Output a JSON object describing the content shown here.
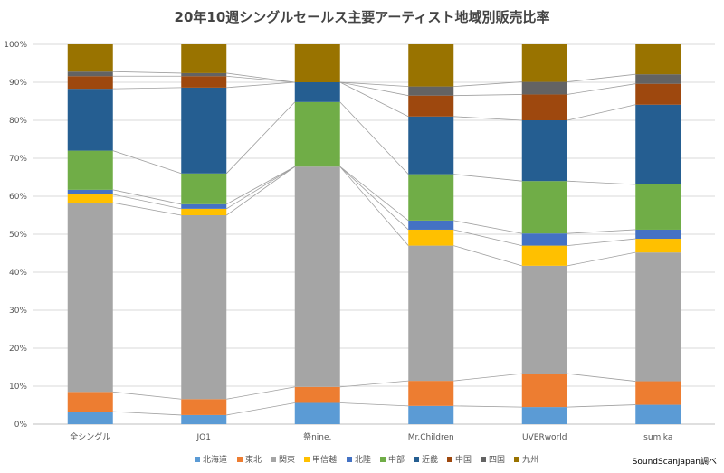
{
  "chart_data": {
    "type": "bar",
    "stacked": "percent",
    "title": "20年10週シングルセールス主要アーティスト地域別販売比率",
    "categories": [
      "全シングル",
      "JO1",
      "祭nine.",
      "Mr.Children",
      "UVERworld",
      "sumika"
    ],
    "ylim": [
      0,
      100
    ],
    "yticks": [
      "0%",
      "10%",
      "20%",
      "30%",
      "40%",
      "50%",
      "60%",
      "70%",
      "80%",
      "90%",
      "100%"
    ],
    "grid": true,
    "legend": "bottom",
    "series_lines": true,
    "series": [
      {
        "name": "北海道",
        "color": "#5b9bd5",
        "values": [
          3.3,
          2.4,
          5.6,
          4.8,
          4.5,
          5.1
        ]
      },
      {
        "name": "東北",
        "color": "#ed7d31",
        "values": [
          5.2,
          4.2,
          4.2,
          6.6,
          8.8,
          6.2
        ]
      },
      {
        "name": "関東",
        "color": "#a5a5a5",
        "values": [
          49.8,
          48.4,
          58.0,
          35.6,
          28.4,
          33.9
        ]
      },
      {
        "name": "甲信越",
        "color": "#ffc000",
        "values": [
          2.2,
          1.7,
          0,
          4.2,
          5.3,
          3.6
        ]
      },
      {
        "name": "北陸",
        "color": "#4472c4",
        "values": [
          1.2,
          1.2,
          0,
          2.4,
          3.2,
          2.4
        ]
      },
      {
        "name": "中部",
        "color": "#70ad47",
        "values": [
          10.3,
          8.1,
          17.0,
          12.2,
          13.8,
          11.9
        ]
      },
      {
        "name": "近畿",
        "color": "#255e91",
        "values": [
          16.3,
          22.6,
          5.2,
          15.2,
          16.0,
          21.0
        ]
      },
      {
        "name": "中国",
        "color": "#9e480e",
        "values": [
          3.3,
          3.0,
          0,
          5.5,
          6.8,
          5.5
        ]
      },
      {
        "name": "四国",
        "color": "#636363",
        "values": [
          1.2,
          0.8,
          0,
          2.4,
          3.3,
          2.5
        ]
      },
      {
        "name": "九州",
        "color": "#997300",
        "values": [
          7.2,
          7.6,
          10.0,
          11.1,
          9.9,
          7.9
        ]
      }
    ]
  },
  "credit": "SoundScanJapan調べ"
}
